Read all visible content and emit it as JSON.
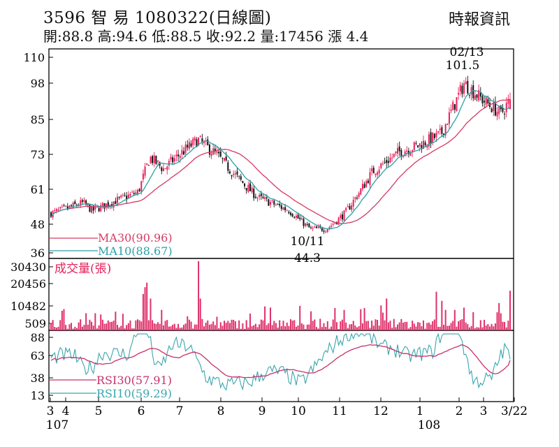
{
  "header": {
    "title": "3596 智 易 1080322(日線圖)",
    "stats": "開:88.8 高:94.6 低:88.5 收:92.2 量:17456 漲 4.4",
    "source": "時報資訊"
  },
  "colors": {
    "up": "#e8205a",
    "down": "#111111",
    "ma30": "#d63a66",
    "ma10": "#2aa0a8",
    "volume": "#e0306a",
    "rsi30": "#c7306a",
    "rsi10": "#3aa5ae"
  },
  "chart_data": [
    {
      "type": "candlestick",
      "title": "",
      "y_ticks": [
        110,
        98,
        85,
        73,
        61,
        48,
        36
      ],
      "ylim": [
        36,
        110
      ],
      "x_tick_labels": [
        "3",
        "4",
        "5",
        "6",
        "7",
        "8",
        "9",
        "10",
        "11",
        "12",
        "1",
        "2",
        "3",
        "3/22"
      ],
      "year_labels": [
        "107",
        "108"
      ],
      "legend": [
        {
          "key": "ma30",
          "label": "MA30(90.96)"
        },
        {
          "key": "ma10",
          "label": "MA10(88.67)"
        }
      ],
      "annotations": [
        {
          "date": "02/13",
          "value": "101.5"
        },
        {
          "date": "10/11",
          "value": "44.3"
        }
      ],
      "last_candle": {
        "open": 88.8,
        "high": 94.6,
        "low": 88.5,
        "close": 92.2
      },
      "price_path": [
        {
          "t": 0,
          "v": 52
        },
        {
          "t": 0.07,
          "v": 56
        },
        {
          "t": 0.09,
          "v": 53
        },
        {
          "t": 0.13,
          "v": 56
        },
        {
          "t": 0.19,
          "v": 60
        },
        {
          "t": 0.215,
          "v": 72
        },
        {
          "t": 0.245,
          "v": 68
        },
        {
          "t": 0.28,
          "v": 73
        },
        {
          "t": 0.32,
          "v": 78
        },
        {
          "t": 0.36,
          "v": 73
        },
        {
          "t": 0.4,
          "v": 66
        },
        {
          "t": 0.45,
          "v": 58
        },
        {
          "t": 0.52,
          "v": 53
        },
        {
          "t": 0.565,
          "v": 46
        },
        {
          "t": 0.6,
          "v": 46
        },
        {
          "t": 0.64,
          "v": 52
        },
        {
          "t": 0.7,
          "v": 67
        },
        {
          "t": 0.76,
          "v": 74
        },
        {
          "t": 0.8,
          "v": 76
        },
        {
          "t": 0.85,
          "v": 80
        },
        {
          "t": 0.9,
          "v": 98
        },
        {
          "t": 0.94,
          "v": 92
        },
        {
          "t": 0.98,
          "v": 87
        },
        {
          "t": 1.0,
          "v": 92.2
        }
      ]
    },
    {
      "type": "bar",
      "title": "成交量(張)",
      "y_ticks": [
        30430,
        20456,
        10482,
        509
      ],
      "ylim": [
        0,
        30430
      ],
      "last_value": 17456
    },
    {
      "type": "line",
      "title": "",
      "y_ticks": [
        88,
        63,
        38,
        13
      ],
      "ylim": [
        0,
        100
      ],
      "legend": [
        {
          "key": "rsi30",
          "label": "RSI30(57.91)"
        },
        {
          "key": "rsi10",
          "label": "RSI10(59.29)"
        }
      ],
      "series": [
        {
          "name": "RSI30",
          "last": 57.91
        },
        {
          "name": "RSI10",
          "last": 59.29
        }
      ]
    }
  ]
}
